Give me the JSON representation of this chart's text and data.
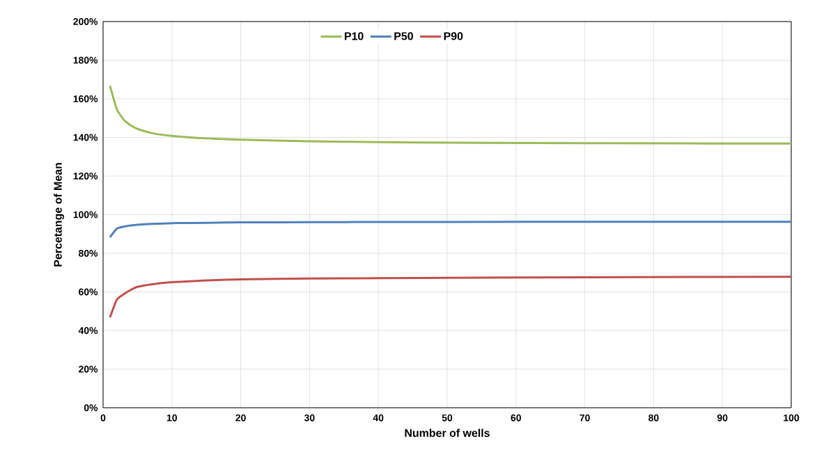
{
  "chart_data": {
    "type": "line",
    "xlabel": "Number of wells",
    "ylabel": "Percetange of Mean",
    "series": [
      {
        "name": "P10",
        "color": "#9bbb59",
        "x": [
          1,
          2,
          3,
          4,
          5,
          7,
          10,
          15,
          20,
          30,
          40,
          50,
          70,
          100
        ],
        "values": [
          166.8,
          154.6,
          149.2,
          146.3,
          144.4,
          142.3,
          140.8,
          139.5,
          138.8,
          138.0,
          137.6,
          137.3,
          137.0,
          136.8
        ]
      },
      {
        "name": "P50",
        "color": "#4f81bd",
        "x": [
          1,
          2,
          3,
          4,
          5,
          7,
          10,
          15,
          20,
          30,
          40,
          50,
          70,
          100
        ],
        "values": [
          88.3,
          92.8,
          93.8,
          94.4,
          94.8,
          95.2,
          95.6,
          95.8,
          96.0,
          96.1,
          96.2,
          96.2,
          96.3,
          96.3
        ]
      },
      {
        "name": "P90",
        "color": "#c0504d",
        "x": [
          1,
          2,
          3,
          4,
          5,
          7,
          10,
          15,
          20,
          30,
          40,
          50,
          70,
          100
        ],
        "values": [
          46.8,
          56.0,
          58.8,
          61.0,
          62.6,
          63.9,
          65.0,
          65.9,
          66.5,
          66.9,
          67.1,
          67.3,
          67.6,
          67.8
        ]
      }
    ],
    "xlim": [
      0,
      100
    ],
    "xticks": [
      0,
      10,
      20,
      30,
      40,
      50,
      60,
      70,
      80,
      90,
      100
    ],
    "ylim": [
      0,
      200
    ],
    "yticks": [
      {
        "value": 0,
        "label": "0%"
      },
      {
        "value": 20,
        "label": "20%"
      },
      {
        "value": 40,
        "label": "40%"
      },
      {
        "value": 60,
        "label": "60%"
      },
      {
        "value": 80,
        "label": "80%"
      },
      {
        "value": 100,
        "label": "100%"
      },
      {
        "value": 120,
        "label": "120%"
      },
      {
        "value": 140,
        "label": "140%"
      },
      {
        "value": 160,
        "label": "160%"
      },
      {
        "value": 180,
        "label": "180%"
      },
      {
        "value": 200,
        "label": "200%"
      }
    ],
    "grid": true,
    "legend": "top",
    "marker": "none",
    "line_style": "solid"
  }
}
